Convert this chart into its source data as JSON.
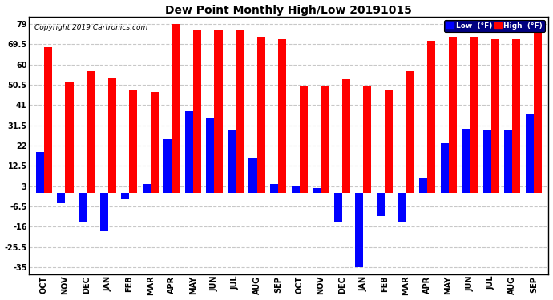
{
  "title": "Dew Point Monthly High/Low 20191015",
  "copyright": "Copyright 2019 Cartronics.com",
  "categories": [
    "OCT",
    "NOV",
    "DEC",
    "JAN",
    "FEB",
    "MAR",
    "APR",
    "MAY",
    "JUN",
    "JUL",
    "AUG",
    "SEP",
    "OCT",
    "NOV",
    "DEC",
    "JAN",
    "FEB",
    "MAR",
    "APR",
    "MAY",
    "JUN",
    "JUL",
    "AUG",
    "SEP"
  ],
  "high_values": [
    68,
    52,
    57,
    54,
    48,
    47,
    79,
    76,
    76,
    76,
    73,
    72,
    50,
    50,
    53,
    50,
    48,
    57,
    71,
    73,
    73,
    72,
    72,
    79
  ],
  "low_values": [
    19,
    -5,
    -14,
    -18,
    -3,
    4,
    25,
    38,
    35,
    29,
    16,
    4,
    3,
    2,
    -14,
    -35,
    -11,
    -14,
    7,
    23,
    30,
    29,
    29,
    37
  ],
  "high_color": "#ff0000",
  "low_color": "#0000ff",
  "bg_color": "#ffffff",
  "grid_color": "#c8c8c8",
  "plot_bg_color": "#ffffff",
  "ylim_min": -38.5,
  "ylim_max": 82.5,
  "yticks": [
    -35.0,
    -25.5,
    -16.0,
    -6.5,
    3.0,
    12.5,
    22.0,
    31.5,
    41.0,
    50.5,
    60.0,
    69.5,
    79.0
  ],
  "bar_width": 0.38,
  "legend_high_label": "High  (°F)",
  "legend_low_label": "Low  (°F)",
  "title_fontsize": 10,
  "tick_fontsize": 7,
  "copyright_fontsize": 6.5
}
